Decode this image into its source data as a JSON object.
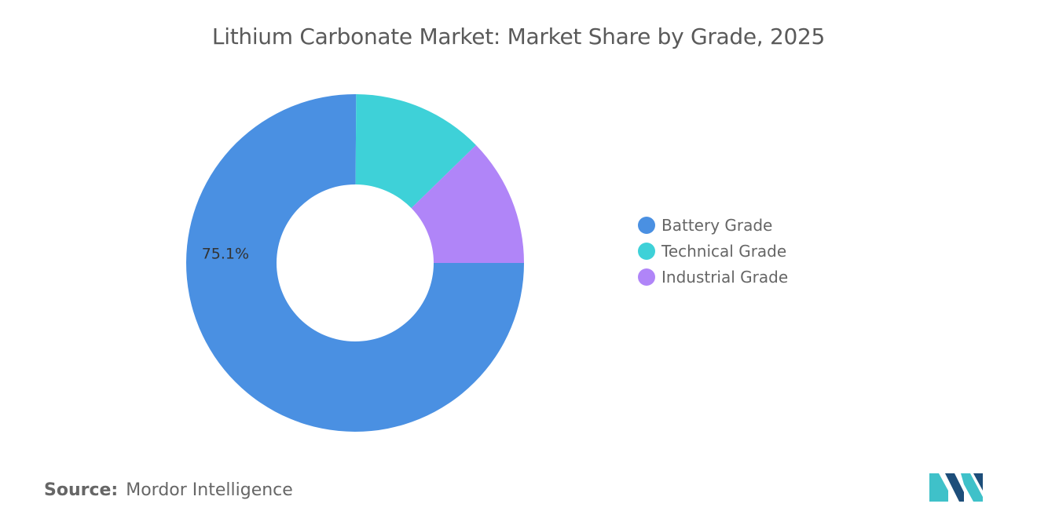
{
  "chart_data": {
    "type": "pie",
    "title": "Lithium Carbonate Market: Market Share by Grade, 2025",
    "categories": [
      "Battery Grade",
      "Technical Grade",
      "Industrial Grade"
    ],
    "values": [
      75.1,
      12.6,
      12.3
    ],
    "colors": [
      "#4a90e2",
      "#3ed1d8",
      "#b085f8"
    ],
    "data_labels": [
      "75.1%",
      null,
      null
    ],
    "donut": true,
    "legend_position": "right"
  },
  "source": {
    "label": "Source:",
    "value": "Mordor Intelligence"
  },
  "logo": {
    "icon": "mordor-intelligence-logo",
    "colors": [
      "#1d4e7a",
      "#3fc1c9"
    ]
  }
}
